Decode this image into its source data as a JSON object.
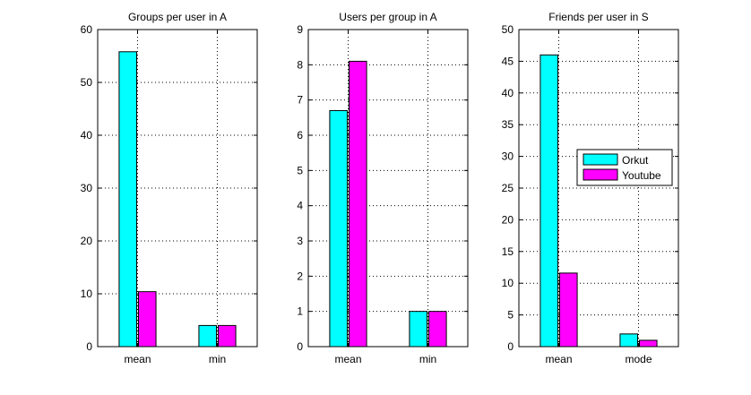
{
  "chart_data": [
    {
      "type": "bar",
      "title": "Groups per user in A",
      "categories": [
        "mean",
        "min"
      ],
      "ylim": [
        0,
        60
      ],
      "yticks": [
        0,
        10,
        20,
        30,
        40,
        50,
        60
      ],
      "grid": true,
      "series": [
        {
          "name": "Orkut",
          "values": [
            55.8,
            4.0
          ]
        },
        {
          "name": "Youtube",
          "values": [
            10.4,
            4.0
          ]
        }
      ]
    },
    {
      "type": "bar",
      "title": "Users per group in A",
      "categories": [
        "mean",
        "min"
      ],
      "ylim": [
        0,
        9
      ],
      "yticks": [
        0,
        1,
        2,
        3,
        4,
        5,
        6,
        7,
        8,
        9
      ],
      "grid": true,
      "series": [
        {
          "name": "Orkut",
          "values": [
            6.7,
            1.0
          ]
        },
        {
          "name": "Youtube",
          "values": [
            8.1,
            1.0
          ]
        }
      ]
    },
    {
      "type": "bar",
      "title": "Friends per user in S",
      "categories": [
        "mean",
        "mode"
      ],
      "ylim": [
        0,
        50
      ],
      "yticks": [
        0,
        5,
        10,
        15,
        20,
        25,
        30,
        35,
        40,
        45,
        50
      ],
      "grid": true,
      "legend": {
        "position": "right",
        "entries": [
          "Orkut",
          "Youtube"
        ]
      },
      "series": [
        {
          "name": "Orkut",
          "values": [
            46.0,
            2.0
          ]
        },
        {
          "name": "Youtube",
          "values": [
            11.6,
            1.0
          ]
        }
      ]
    }
  ],
  "colors": {
    "Orkut": "#00ffff",
    "Youtube": "#ff00ff",
    "edge": "#000000",
    "grid": "#000000"
  }
}
